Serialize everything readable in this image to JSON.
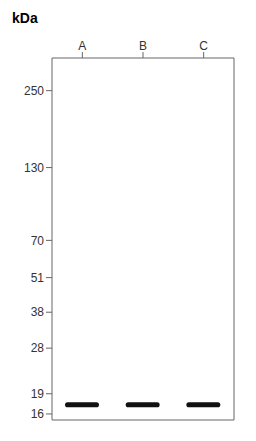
{
  "chart_data": {
    "type": "bar",
    "y_label": "kDa",
    "categories": [
      "A",
      "B",
      "C"
    ],
    "values": [
      17.3,
      17.3,
      17.3
    ],
    "band_height": 0.75,
    "color": "#111111",
    "log": "y",
    "ylim": [
      15.2,
      330
    ],
    "yticks": [
      250,
      130,
      70,
      51,
      38,
      28,
      19,
      16
    ],
    "grid": false
  }
}
